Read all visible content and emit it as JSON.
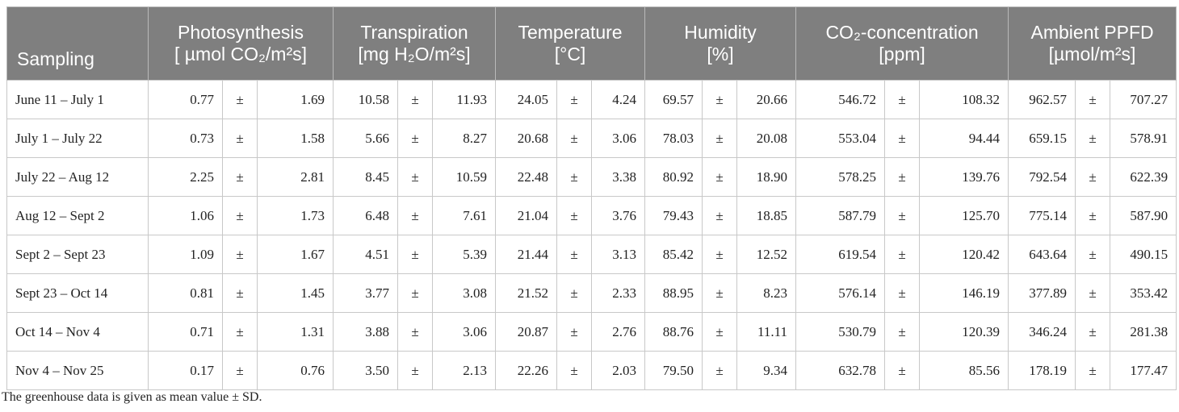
{
  "table": {
    "headers": [
      {
        "line1": "Sampling",
        "line2": ""
      },
      {
        "line1": "Photosynthesis",
        "line2": "[ µmol CO₂/m²s]"
      },
      {
        "line1": "Transpiration",
        "line2": "[mg H₂O/m²s]"
      },
      {
        "line1": "Temperature",
        "line2": "[°C]"
      },
      {
        "line1": "Humidity",
        "line2": "[%]"
      },
      {
        "line1": "CO₂-concentration",
        "line2": "[ppm]"
      },
      {
        "line1": "Ambient PPFD",
        "line2": "[µmol/m²s]"
      }
    ],
    "pm_symbol": "±",
    "rows": [
      {
        "label": "June 11 – July 1",
        "values": [
          [
            "0.77",
            "1.69"
          ],
          [
            "10.58",
            "11.93"
          ],
          [
            "24.05",
            "4.24"
          ],
          [
            "69.57",
            "20.66"
          ],
          [
            "546.72",
            "108.32"
          ],
          [
            "962.57",
            "707.27"
          ]
        ]
      },
      {
        "label": "July 1 – July 22",
        "values": [
          [
            "0.73",
            "1.58"
          ],
          [
            "5.66",
            "8.27"
          ],
          [
            "20.68",
            "3.06"
          ],
          [
            "78.03",
            "20.08"
          ],
          [
            "553.04",
            "94.44"
          ],
          [
            "659.15",
            "578.91"
          ]
        ]
      },
      {
        "label": "July 22 – Aug 12",
        "values": [
          [
            "2.25",
            "2.81"
          ],
          [
            "8.45",
            "10.59"
          ],
          [
            "22.48",
            "3.38"
          ],
          [
            "80.92",
            "18.90"
          ],
          [
            "578.25",
            "139.76"
          ],
          [
            "792.54",
            "622.39"
          ]
        ]
      },
      {
        "label": "Aug 12 – Sept 2",
        "values": [
          [
            "1.06",
            "1.73"
          ],
          [
            "6.48",
            "7.61"
          ],
          [
            "21.04",
            "3.76"
          ],
          [
            "79.43",
            "18.85"
          ],
          [
            "587.79",
            "125.70"
          ],
          [
            "775.14",
            "587.90"
          ]
        ]
      },
      {
        "label": "Sept 2 – Sept 23",
        "values": [
          [
            "1.09",
            "1.67"
          ],
          [
            "4.51",
            "5.39"
          ],
          [
            "21.44",
            "3.13"
          ],
          [
            "85.42",
            "12.52"
          ],
          [
            "619.54",
            "120.42"
          ],
          [
            "643.64",
            "490.15"
          ]
        ]
      },
      {
        "label": "Sept 23 – Oct 14",
        "values": [
          [
            "0.81",
            "1.45"
          ],
          [
            "3.77",
            "3.08"
          ],
          [
            "21.52",
            "2.33"
          ],
          [
            "88.95",
            "8.23"
          ],
          [
            "576.14",
            "146.19"
          ],
          [
            "377.89",
            "353.42"
          ]
        ]
      },
      {
        "label": "Oct 14 – Nov 4",
        "values": [
          [
            "0.71",
            "1.31"
          ],
          [
            "3.88",
            "3.06"
          ],
          [
            "20.87",
            "2.76"
          ],
          [
            "88.76",
            "11.11"
          ],
          [
            "530.79",
            "120.39"
          ],
          [
            "346.24",
            "281.38"
          ]
        ]
      },
      {
        "label": "Nov 4 – Nov 25",
        "values": [
          [
            "0.17",
            "0.76"
          ],
          [
            "3.50",
            "2.13"
          ],
          [
            "22.26",
            "2.03"
          ],
          [
            "79.50",
            "9.34"
          ],
          [
            "632.78",
            "85.56"
          ],
          [
            "178.19",
            "177.47"
          ]
        ]
      }
    ]
  },
  "note": "The greenhouse data is given as mean value ± SD.",
  "colors": {
    "header_bg": "#7f7f7f",
    "header_text": "#ffffff",
    "border": "#c8c8c8"
  }
}
